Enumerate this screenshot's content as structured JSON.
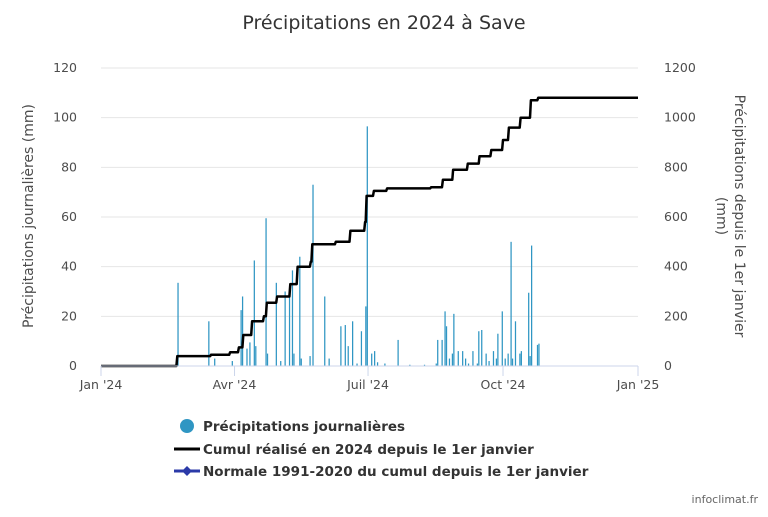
{
  "chart_data": {
    "type": "bar",
    "title": "Précipitations en 2024 à Save",
    "y_left_label": "Précipitations journalières (mm)",
    "y_right_label_line1": "Précipitations depuis le 1er janvier",
    "y_right_label_line2": "(mm)",
    "y_left_ticks": [
      "0",
      "20",
      "40",
      "60",
      "80",
      "100",
      "120"
    ],
    "y_right_ticks": [
      "0",
      "200",
      "400",
      "600",
      "800",
      "1000",
      "1200"
    ],
    "y_left_range": [
      0,
      120
    ],
    "y_right_range": [
      0,
      1200
    ],
    "x_ticks": [
      {
        "label": "Jan '24",
        "day": 0
      },
      {
        "label": "Avr '24",
        "day": 91
      },
      {
        "label": "Juil '24",
        "day": 182
      },
      {
        "label": "Oct '24",
        "day": 274
      },
      {
        "label": "Jan '25",
        "day": 366
      }
    ],
    "x_range_days": [
      0,
      366
    ],
    "grid": true,
    "legend_position": "bottom",
    "credits": "infoclimat.fr",
    "colors": {
      "daily": "#2f96c3",
      "cumul": "#000000",
      "normal": "#2b3aa8",
      "grid": "#e6e6e6",
      "axis": "#ccd6eb"
    },
    "series": [
      {
        "name": "Précipitations journalières",
        "type": "bar",
        "axis": "left",
        "points": [
          {
            "day": 52,
            "value": 33.5
          },
          {
            "day": 73,
            "value": 18
          },
          {
            "day": 77,
            "value": 3
          },
          {
            "day": 89,
            "value": 2
          },
          {
            "day": 95,
            "value": 22.5
          },
          {
            "day": 96,
            "value": 28
          },
          {
            "day": 99,
            "value": 7
          },
          {
            "day": 101,
            "value": 9.5
          },
          {
            "day": 104,
            "value": 42.5
          },
          {
            "day": 105,
            "value": 8
          },
          {
            "day": 112,
            "value": 59.5
          },
          {
            "day": 113,
            "value": 5
          },
          {
            "day": 119,
            "value": 33.5
          },
          {
            "day": 122,
            "value": 2
          },
          {
            "day": 125,
            "value": 30
          },
          {
            "day": 128,
            "value": 28
          },
          {
            "day": 130,
            "value": 38.5
          },
          {
            "day": 131,
            "value": 5
          },
          {
            "day": 135,
            "value": 44
          },
          {
            "day": 136,
            "value": 3
          },
          {
            "day": 142,
            "value": 4
          },
          {
            "day": 144,
            "value": 73
          },
          {
            "day": 152,
            "value": 28
          },
          {
            "day": 155,
            "value": 3
          },
          {
            "day": 163,
            "value": 16
          },
          {
            "day": 166,
            "value": 16.5
          },
          {
            "day": 168,
            "value": 8
          },
          {
            "day": 171,
            "value": 18
          },
          {
            "day": 174,
            "value": 1
          },
          {
            "day": 177,
            "value": 14
          },
          {
            "day": 180,
            "value": 24
          },
          {
            "day": 181,
            "value": 96.5
          },
          {
            "day": 184,
            "value": 5
          },
          {
            "day": 186,
            "value": 6
          },
          {
            "day": 188,
            "value": 1.5
          },
          {
            "day": 193,
            "value": 1
          },
          {
            "day": 202,
            "value": 10.5
          },
          {
            "day": 210,
            "value": 0.5
          },
          {
            "day": 220,
            "value": 0.5
          },
          {
            "day": 228,
            "value": 1
          },
          {
            "day": 229,
            "value": 10.5
          },
          {
            "day": 232,
            "value": 10.5
          },
          {
            "day": 234,
            "value": 22
          },
          {
            "day": 235,
            "value": 16
          },
          {
            "day": 237,
            "value": 3
          },
          {
            "day": 239,
            "value": 5
          },
          {
            "day": 240,
            "value": 21
          },
          {
            "day": 243,
            "value": 6
          },
          {
            "day": 246,
            "value": 6
          },
          {
            "day": 248,
            "value": 3
          },
          {
            "day": 250,
            "value": 1
          },
          {
            "day": 253,
            "value": 6
          },
          {
            "day": 256,
            "value": 1
          },
          {
            "day": 257,
            "value": 14
          },
          {
            "day": 259,
            "value": 14.5
          },
          {
            "day": 262,
            "value": 5
          },
          {
            "day": 264,
            "value": 2
          },
          {
            "day": 267,
            "value": 6
          },
          {
            "day": 269,
            "value": 3
          },
          {
            "day": 270,
            "value": 13
          },
          {
            "day": 273,
            "value": 22
          },
          {
            "day": 275,
            "value": 3
          },
          {
            "day": 277,
            "value": 5
          },
          {
            "day": 279,
            "value": 50
          },
          {
            "day": 280,
            "value": 3
          },
          {
            "day": 282,
            "value": 18
          },
          {
            "day": 285,
            "value": 5
          },
          {
            "day": 286,
            "value": 6
          },
          {
            "day": 291,
            "value": 29.5
          },
          {
            "day": 292,
            "value": 4
          },
          {
            "day": 293,
            "value": 48.5
          },
          {
            "day": 297,
            "value": 8.5
          },
          {
            "day": 298,
            "value": 9
          }
        ]
      },
      {
        "name": "Cumul réalisé en 2024 depuis le 1er janvier",
        "type": "line",
        "axis": "right",
        "points": [
          {
            "day": 0,
            "value": 0
          },
          {
            "day": 51,
            "value": 0
          },
          {
            "day": 52,
            "value": 40
          },
          {
            "day": 75,
            "value": 45
          },
          {
            "day": 88,
            "value": 55
          },
          {
            "day": 94,
            "value": 75
          },
          {
            "day": 97,
            "value": 125
          },
          {
            "day": 103,
            "value": 180
          },
          {
            "day": 111,
            "value": 200
          },
          {
            "day": 113,
            "value": 255
          },
          {
            "day": 120,
            "value": 280
          },
          {
            "day": 129,
            "value": 330
          },
          {
            "day": 134,
            "value": 400
          },
          {
            "day": 143,
            "value": 420
          },
          {
            "day": 144,
            "value": 490
          },
          {
            "day": 160,
            "value": 500
          },
          {
            "day": 170,
            "value": 545
          },
          {
            "day": 180,
            "value": 580
          },
          {
            "day": 181,
            "value": 685
          },
          {
            "day": 186,
            "value": 705
          },
          {
            "day": 195,
            "value": 715
          },
          {
            "day": 225,
            "value": 720
          },
          {
            "day": 233,
            "value": 750
          },
          {
            "day": 240,
            "value": 790
          },
          {
            "day": 250,
            "value": 815
          },
          {
            "day": 258,
            "value": 845
          },
          {
            "day": 266,
            "value": 870
          },
          {
            "day": 274,
            "value": 910
          },
          {
            "day": 278,
            "value": 960
          },
          {
            "day": 286,
            "value": 1000
          },
          {
            "day": 293,
            "value": 1070
          },
          {
            "day": 298,
            "value": 1080
          },
          {
            "day": 366,
            "value": 1080
          }
        ]
      },
      {
        "name": "Normale 1991-2020 du cumul depuis le 1er janvier",
        "type": "line",
        "axis": "right",
        "points": []
      }
    ]
  }
}
